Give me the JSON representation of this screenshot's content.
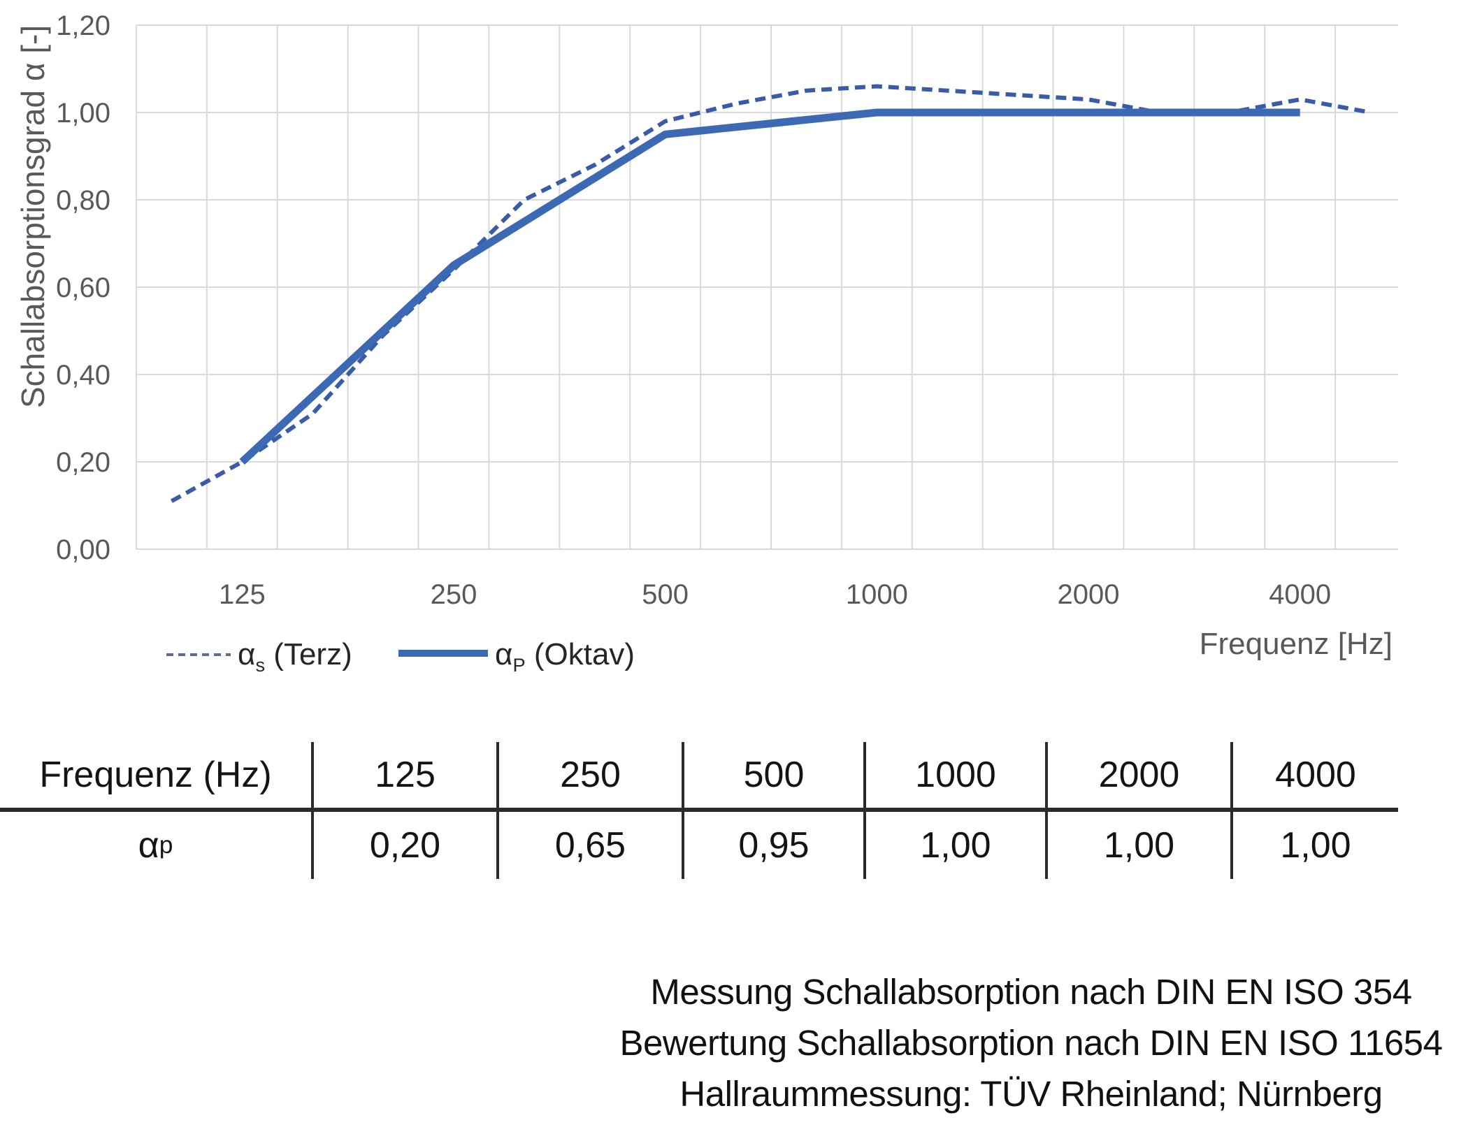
{
  "page": {
    "background": "#ffffff"
  },
  "chart_data": {
    "type": "line",
    "title": "",
    "xlabel": "Frequenz [Hz]",
    "ylabel": "Schallabsorptionsgrad α [-]",
    "ylim": [
      0,
      1.2
    ],
    "grid": true,
    "legend_position": "bottom-left",
    "y_tick_labels": [
      "0,00",
      "0,20",
      "0,40",
      "0,60",
      "0,80",
      "1,00",
      "1,20"
    ],
    "x_tick_labels": [
      "125",
      "250",
      "500",
      "1000",
      "2000",
      "4000"
    ],
    "x_tick_category_indices": [
      1,
      4,
      7,
      10,
      13,
      16
    ],
    "categories_hz": [
      100,
      125,
      160,
      200,
      250,
      315,
      400,
      500,
      630,
      800,
      1000,
      1250,
      1600,
      2000,
      2500,
      3150,
      4000,
      5000
    ],
    "series": [
      {
        "name": "αs (Terz)",
        "line_style": "dashed",
        "color": "#3a5ca8",
        "frequencies_hz": [
          100,
          125,
          160,
          200,
          250,
          315,
          400,
          500,
          630,
          800,
          1000,
          1250,
          1600,
          2000,
          2500,
          3150,
          4000,
          5000
        ],
        "values": [
          0.11,
          0.2,
          0.31,
          0.49,
          0.64,
          0.8,
          0.88,
          0.98,
          1.02,
          1.05,
          1.06,
          1.05,
          1.04,
          1.03,
          1.0,
          1.0,
          1.03,
          1.0
        ]
      },
      {
        "name": "αP (Oktav)",
        "line_style": "solid",
        "color": "#3c69b4",
        "frequencies_hz": [
          125,
          250,
          500,
          1000,
          2000,
          4000
        ],
        "category_indices": [
          1,
          4,
          7,
          10,
          13,
          16
        ],
        "values": [
          0.2,
          0.65,
          0.95,
          1.0,
          1.0,
          1.0
        ]
      }
    ],
    "legend": [
      {
        "pre": "α",
        "sub": "s",
        "post": " (Terz)"
      },
      {
        "pre": "α",
        "sub": "P",
        "post": " (Oktav)"
      }
    ]
  },
  "table": {
    "header": [
      "Frequenz (Hz)",
      "125",
      "250",
      "500",
      "1000",
      "2000",
      "4000"
    ],
    "row": {
      "label_pre": "α",
      "label_sub": "p",
      "values": [
        "0,20",
        "0,65",
        "0,95",
        "1,00",
        "1,00",
        "1,00"
      ]
    }
  },
  "footer": {
    "lines": [
      "Messung Schallabsorption nach DIN EN ISO 354",
      "Bewertung Schallabsorption nach DIN EN ISO 11654",
      "Hallraummessung: TÜV Rheinland; Nürnberg"
    ]
  },
  "colors": {
    "grid": "#d9d9d9",
    "axis_text": "#595959",
    "terz_line": "#3a5ca8",
    "oktav_line": "#3c69b4",
    "legend_dash_sample": "#5c6e8f",
    "table_rule": "#2b2b2b",
    "text": "#141414"
  }
}
